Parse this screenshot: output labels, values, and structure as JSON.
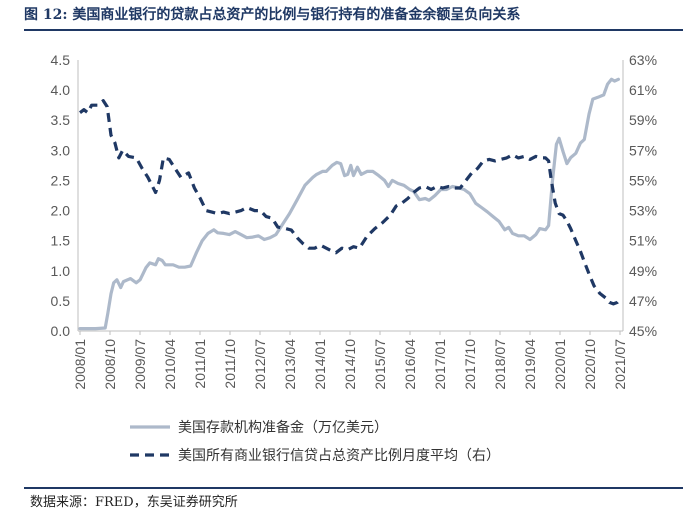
{
  "figure_title": "图 12:  美国商业银行的贷款占总资产的比例与银行持有的准备金余额呈负向关系",
  "source": "数据来源：FRED，东吴证券研究所",
  "colors": {
    "reserves": "#adb9ca",
    "loans": "#1f3864",
    "axis": "#bfbfbf",
    "title": "#1f3864"
  },
  "chart_data": {
    "type": "line",
    "title": "",
    "xlabel": "",
    "ylabel": "",
    "x_tick_labels": [
      "2008/01",
      "2008/10",
      "2009/07",
      "2010/04",
      "2011/01",
      "2011/10",
      "2012/07",
      "2013/04",
      "2014/01",
      "2014/10",
      "2015/07",
      "2016/04",
      "2017/01",
      "2017/10",
      "2018/07",
      "2019/04",
      "2020/01",
      "2020/10",
      "2021/07"
    ],
    "y_left": {
      "ticks": [
        "0.0",
        "0.5",
        "1.0",
        "1.5",
        "2.0",
        "2.5",
        "3.0",
        "3.5",
        "4.0",
        "4.5"
      ],
      "lim": [
        0,
        4.5
      ]
    },
    "y_right": {
      "ticks": [
        "45%",
        "47%",
        "49%",
        "51%",
        "53%",
        "55%",
        "57%",
        "59%",
        "61%",
        "63%"
      ],
      "lim": [
        45,
        63
      ]
    },
    "x_range": [
      2008.0,
      2021.92
    ],
    "legend_position": "bottom",
    "series": [
      {
        "name": "美国存款机构准备金（万亿美元）",
        "axis": "left",
        "style": "solid",
        "points": [
          [
            2008.0,
            0.04
          ],
          [
            2008.4,
            0.04
          ],
          [
            2008.65,
            0.05
          ],
          [
            2008.72,
            0.3
          ],
          [
            2008.8,
            0.62
          ],
          [
            2008.87,
            0.8
          ],
          [
            2008.95,
            0.85
          ],
          [
            2009.05,
            0.72
          ],
          [
            2009.12,
            0.82
          ],
          [
            2009.3,
            0.87
          ],
          [
            2009.45,
            0.8
          ],
          [
            2009.55,
            0.85
          ],
          [
            2009.7,
            1.05
          ],
          [
            2009.8,
            1.13
          ],
          [
            2009.95,
            1.1
          ],
          [
            2010.02,
            1.2
          ],
          [
            2010.12,
            1.17
          ],
          [
            2010.2,
            1.1
          ],
          [
            2010.4,
            1.1
          ],
          [
            2010.55,
            1.06
          ],
          [
            2010.7,
            1.06
          ],
          [
            2010.85,
            1.08
          ],
          [
            2011.0,
            1.3
          ],
          [
            2011.15,
            1.5
          ],
          [
            2011.3,
            1.62
          ],
          [
            2011.45,
            1.68
          ],
          [
            2011.55,
            1.63
          ],
          [
            2011.7,
            1.62
          ],
          [
            2011.85,
            1.6
          ],
          [
            2012.0,
            1.65
          ],
          [
            2012.15,
            1.6
          ],
          [
            2012.3,
            1.55
          ],
          [
            2012.45,
            1.56
          ],
          [
            2012.6,
            1.58
          ],
          [
            2012.75,
            1.52
          ],
          [
            2012.9,
            1.55
          ],
          [
            2013.05,
            1.6
          ],
          [
            2013.2,
            1.75
          ],
          [
            2013.4,
            1.95
          ],
          [
            2013.6,
            2.18
          ],
          [
            2013.8,
            2.42
          ],
          [
            2014.0,
            2.55
          ],
          [
            2014.1,
            2.6
          ],
          [
            2014.25,
            2.65
          ],
          [
            2014.35,
            2.65
          ],
          [
            2014.5,
            2.75
          ],
          [
            2014.62,
            2.8
          ],
          [
            2014.72,
            2.78
          ],
          [
            2014.82,
            2.58
          ],
          [
            2014.9,
            2.6
          ],
          [
            2014.98,
            2.75
          ],
          [
            2015.05,
            2.58
          ],
          [
            2015.15,
            2.72
          ],
          [
            2015.25,
            2.6
          ],
          [
            2015.4,
            2.65
          ],
          [
            2015.55,
            2.65
          ],
          [
            2015.7,
            2.58
          ],
          [
            2015.85,
            2.5
          ],
          [
            2015.95,
            2.4
          ],
          [
            2016.05,
            2.5
          ],
          [
            2016.2,
            2.45
          ],
          [
            2016.35,
            2.42
          ],
          [
            2016.5,
            2.35
          ],
          [
            2016.6,
            2.32
          ],
          [
            2016.75,
            2.18
          ],
          [
            2016.9,
            2.2
          ],
          [
            2017.0,
            2.17
          ],
          [
            2017.15,
            2.25
          ],
          [
            2017.3,
            2.35
          ],
          [
            2017.45,
            2.35
          ],
          [
            2017.6,
            2.4
          ],
          [
            2017.75,
            2.38
          ],
          [
            2017.9,
            2.35
          ],
          [
            2018.05,
            2.28
          ],
          [
            2018.2,
            2.12
          ],
          [
            2018.35,
            2.05
          ],
          [
            2018.5,
            1.98
          ],
          [
            2018.65,
            1.9
          ],
          [
            2018.8,
            1.82
          ],
          [
            2018.95,
            1.68
          ],
          [
            2019.05,
            1.72
          ],
          [
            2019.15,
            1.62
          ],
          [
            2019.3,
            1.58
          ],
          [
            2019.45,
            1.58
          ],
          [
            2019.6,
            1.52
          ],
          [
            2019.75,
            1.6
          ],
          [
            2019.85,
            1.7
          ],
          [
            2020.0,
            1.68
          ],
          [
            2020.08,
            1.75
          ],
          [
            2020.18,
            2.5
          ],
          [
            2020.28,
            3.1
          ],
          [
            2020.35,
            3.2
          ],
          [
            2020.45,
            2.98
          ],
          [
            2020.55,
            2.78
          ],
          [
            2020.65,
            2.88
          ],
          [
            2020.78,
            2.95
          ],
          [
            2020.9,
            3.12
          ],
          [
            2021.0,
            3.18
          ],
          [
            2021.12,
            3.6
          ],
          [
            2021.22,
            3.85
          ],
          [
            2021.35,
            3.88
          ],
          [
            2021.5,
            3.92
          ],
          [
            2021.6,
            4.1
          ],
          [
            2021.7,
            4.18
          ],
          [
            2021.78,
            4.15
          ],
          [
            2021.88,
            4.18
          ]
        ]
      },
      {
        "name": "美国所有商业银行信贷占总资产比例月度平均（右）",
        "axis": "right",
        "style": "dashed",
        "points": [
          [
            2008.0,
            59.5
          ],
          [
            2008.1,
            59.7
          ],
          [
            2008.2,
            59.5
          ],
          [
            2008.3,
            60.0
          ],
          [
            2008.45,
            60.0
          ],
          [
            2008.6,
            60.3
          ],
          [
            2008.7,
            59.9
          ],
          [
            2008.8,
            58.0
          ],
          [
            2008.9,
            57.5
          ],
          [
            2009.0,
            56.5
          ],
          [
            2009.1,
            57.0
          ],
          [
            2009.25,
            56.6
          ],
          [
            2009.45,
            56.5
          ],
          [
            2009.6,
            55.8
          ],
          [
            2009.75,
            55.2
          ],
          [
            2009.95,
            54.2
          ],
          [
            2010.05,
            55.0
          ],
          [
            2010.15,
            56.5
          ],
          [
            2010.3,
            56.4
          ],
          [
            2010.45,
            55.8
          ],
          [
            2010.6,
            55.2
          ],
          [
            2010.8,
            55.5
          ],
          [
            2010.95,
            54.5
          ],
          [
            2011.1,
            53.8
          ],
          [
            2011.25,
            53.0
          ],
          [
            2011.4,
            52.9
          ],
          [
            2011.55,
            52.8
          ],
          [
            2011.7,
            52.9
          ],
          [
            2011.85,
            52.8
          ],
          [
            2012.0,
            52.9
          ],
          [
            2012.15,
            53.0
          ],
          [
            2012.3,
            53.2
          ],
          [
            2012.5,
            53.0
          ],
          [
            2012.65,
            53.0
          ],
          [
            2012.8,
            52.6
          ],
          [
            2012.95,
            52.5
          ],
          [
            2013.1,
            51.9
          ],
          [
            2013.3,
            51.8
          ],
          [
            2013.45,
            51.7
          ],
          [
            2013.6,
            51.2
          ],
          [
            2013.75,
            50.8
          ],
          [
            2013.9,
            50.5
          ],
          [
            2014.05,
            50.5
          ],
          [
            2014.2,
            50.7
          ],
          [
            2014.35,
            50.5
          ],
          [
            2014.5,
            50.3
          ],
          [
            2014.6,
            50.2
          ],
          [
            2014.75,
            50.5
          ],
          [
            2014.9,
            50.4
          ],
          [
            2015.05,
            50.6
          ],
          [
            2015.2,
            50.5
          ],
          [
            2015.4,
            51.3
          ],
          [
            2015.6,
            51.8
          ],
          [
            2015.8,
            52.2
          ],
          [
            2016.0,
            52.7
          ],
          [
            2016.15,
            53.3
          ],
          [
            2016.3,
            53.5
          ],
          [
            2016.45,
            53.8
          ],
          [
            2016.6,
            54.2
          ],
          [
            2016.75,
            54.5
          ],
          [
            2016.9,
            54.6
          ],
          [
            2017.05,
            54.4
          ],
          [
            2017.2,
            54.6
          ],
          [
            2017.35,
            54.5
          ],
          [
            2017.5,
            54.6
          ],
          [
            2017.65,
            54.5
          ],
          [
            2017.8,
            54.5
          ],
          [
            2017.95,
            55.0
          ],
          [
            2018.1,
            55.5
          ],
          [
            2018.25,
            55.8
          ],
          [
            2018.4,
            56.3
          ],
          [
            2018.55,
            56.4
          ],
          [
            2018.7,
            56.3
          ],
          [
            2018.85,
            56.4
          ],
          [
            2019.0,
            56.5
          ],
          [
            2019.15,
            56.7
          ],
          [
            2019.3,
            56.5
          ],
          [
            2019.45,
            56.6
          ],
          [
            2019.6,
            56.4
          ],
          [
            2019.75,
            56.6
          ],
          [
            2019.9,
            56.5
          ],
          [
            2020.0,
            56.5
          ],
          [
            2020.08,
            56.3
          ],
          [
            2020.15,
            55.0
          ],
          [
            2020.25,
            53.5
          ],
          [
            2020.35,
            52.8
          ],
          [
            2020.45,
            52.7
          ],
          [
            2020.55,
            52.3
          ],
          [
            2020.65,
            51.8
          ],
          [
            2020.78,
            51.0
          ],
          [
            2020.9,
            50.3
          ],
          [
            2021.0,
            49.6
          ],
          [
            2021.12,
            48.8
          ],
          [
            2021.25,
            48.0
          ],
          [
            2021.4,
            47.5
          ],
          [
            2021.55,
            47.2
          ],
          [
            2021.65,
            46.9
          ],
          [
            2021.75,
            46.8
          ],
          [
            2021.85,
            46.9
          ],
          [
            2021.92,
            47.1
          ]
        ]
      }
    ]
  }
}
